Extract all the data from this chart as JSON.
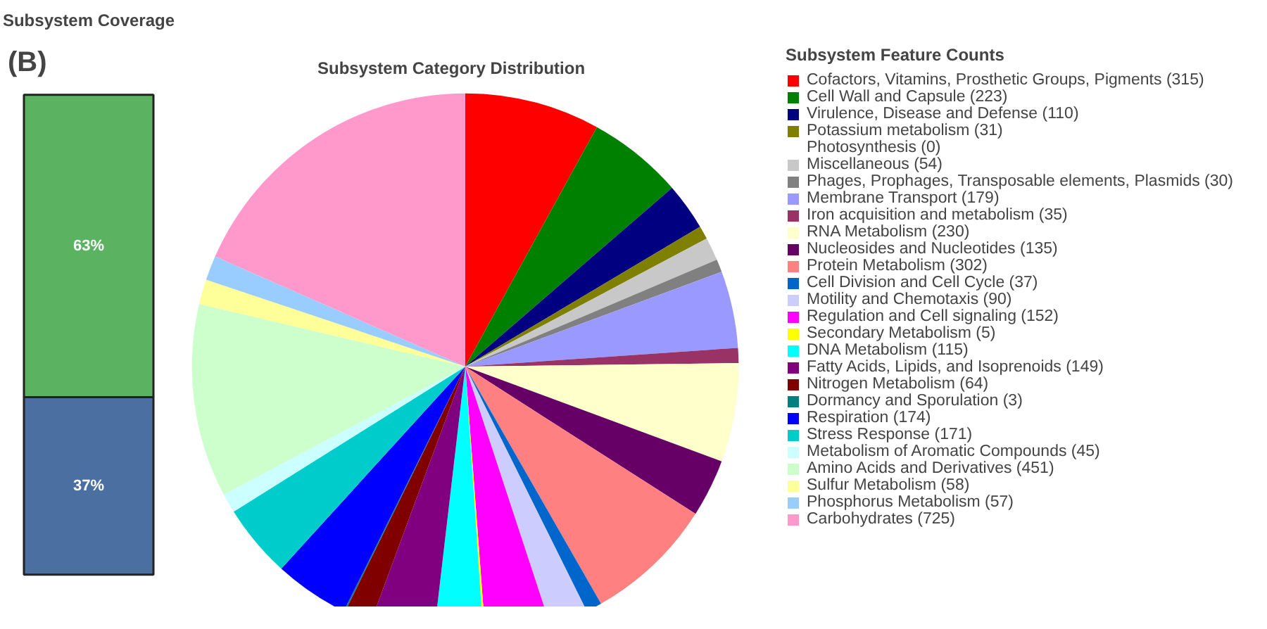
{
  "chart_data": [
    {
      "type": "bar",
      "stacked": true,
      "title": "Subsystem Coverage",
      "annotations": [
        "(B)"
      ],
      "categories": [
        null
      ],
      "series": [
        {
          "color": "#4a6fa0",
          "values": [
            37
          ],
          "value_labels": [
            "37%"
          ]
        },
        {
          "color": "#5bb260",
          "values": [
            63
          ],
          "value_labels": [
            "63%"
          ]
        }
      ]
    },
    {
      "type": "pie",
      "title": "Subsystem Category Distribution",
      "legend_title": "Subsystem Feature Counts",
      "legend": "right",
      "categories": [
        "Cofactors, Vitamins, Prosthetic Groups, Pigments (315)",
        "Cell Wall and Capsule (223)",
        "Virulence, Disease and Defense (110)",
        "Potassium metabolism (31)",
        "Photosynthesis (0)",
        "Miscellaneous (54)",
        "Phages, Prophages, Transposable elements, Plasmids (30)",
        "Membrane Transport (179)",
        "Iron acquisition and metabolism (35)",
        "RNA Metabolism (230)",
        "Nucleosides and Nucleotides (135)",
        "Protein Metabolism (302)",
        "Cell Division and Cell Cycle (37)",
        "Motility and Chemotaxis (90)",
        "Regulation and Cell signaling (152)",
        "Secondary Metabolism (5)",
        "DNA Metabolism (115)",
        "Fatty Acids, Lipids, and Isoprenoids (149)",
        "Nitrogen Metabolism (64)",
        "Dormancy and Sporulation (3)",
        "Respiration (174)",
        "Stress Response (171)",
        "Metabolism of Aromatic Compounds (45)",
        "Amino Acids and Derivatives (451)",
        "Sulfur Metabolism (58)",
        "Phosphorus Metabolism (57)",
        "Carbohydrates (725)"
      ],
      "values": [
        315,
        223,
        110,
        31,
        0,
        54,
        30,
        179,
        35,
        230,
        135,
        302,
        37,
        90,
        152,
        5,
        115,
        149,
        64,
        3,
        174,
        171,
        45,
        451,
        58,
        57,
        725
      ],
      "colors": [
        "#ff0000",
        "#008000",
        "#000080",
        "#808000",
        "#800080",
        "#c8c8c8",
        "#808080",
        "#9999ff",
        "#993366",
        "#ffffcc",
        "#660066",
        "#ff8080",
        "#0066cc",
        "#ccccff",
        "#ff00ff",
        "#ffff00",
        "#00ffff",
        "#800080",
        "#800000",
        "#008080",
        "#0000ff",
        "#00cccc",
        "#ccffff",
        "#ccffcc",
        "#ffff99",
        "#99ccff",
        "#ff99cc"
      ]
    }
  ]
}
